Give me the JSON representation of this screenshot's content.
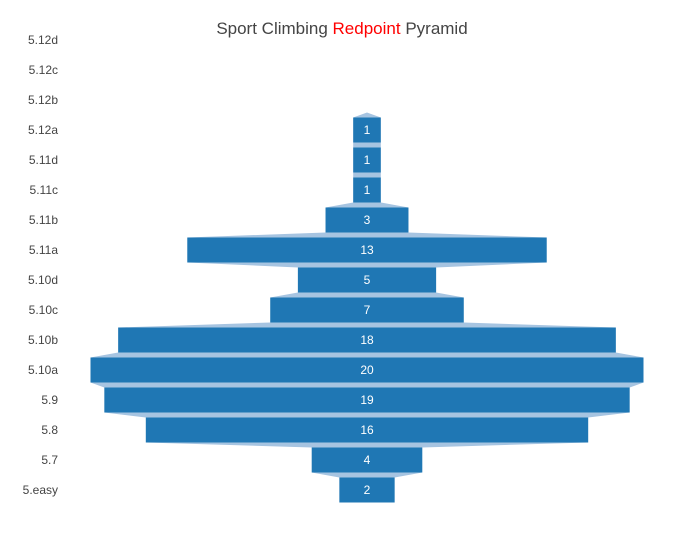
{
  "chart_data": {
    "type": "funnel",
    "title": {
      "prefix": "Sport Climbing ",
      "highlight": "Redpoint",
      "suffix": " Pyramid",
      "highlight_color": "#ff0000"
    },
    "categories": [
      "5.12d",
      "5.12c",
      "5.12b",
      "5.12a",
      "5.11d",
      "5.11c",
      "5.11b",
      "5.11a",
      "5.10d",
      "5.10c",
      "5.10b",
      "5.10a",
      "5.9",
      "5.8",
      "5.7",
      "5.easy"
    ],
    "values": [
      null,
      null,
      null,
      1,
      1,
      1,
      3,
      13,
      5,
      7,
      18,
      20,
      19,
      16,
      4,
      2
    ],
    "bar_color": "#1f77b4",
    "connector_color": "#a6c4e1",
    "text_color": "#ffffff"
  }
}
